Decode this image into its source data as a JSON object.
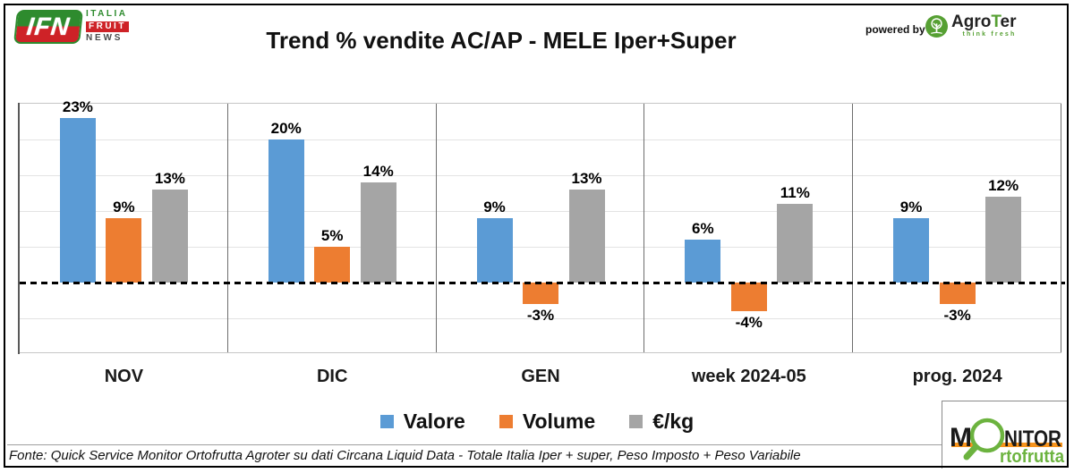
{
  "header": {
    "ifn_logo": {
      "abbr": "IFN",
      "word1": "ITALIA",
      "word2": "FRUIT",
      "word3": "NEWS"
    },
    "title": "Trend % vendite AC/AP - MELE Iper+Super",
    "powered_by": "powered by",
    "agroter": {
      "part1": "Agro",
      "part2": "T",
      "part3": "er",
      "tagline": "think fresh"
    }
  },
  "chart_data": {
    "type": "bar",
    "title": "Trend % vendite AC/AP - MELE Iper+Super",
    "categories": [
      "NOV",
      "DIC",
      "GEN",
      "week 2024-05",
      "prog. 2024"
    ],
    "series": [
      {
        "name": "Valore",
        "color": "#5B9BD5",
        "values": [
          23,
          20,
          9,
          6,
          9
        ]
      },
      {
        "name": "Volume",
        "color": "#ED7D31",
        "values": [
          9,
          5,
          -3,
          -4,
          -3
        ]
      },
      {
        "name": "€/kg",
        "color": "#A5A5A5",
        "values": [
          13,
          14,
          13,
          11,
          12
        ]
      }
    ],
    "value_suffix": "%",
    "ylim": [
      -10,
      25
    ],
    "gridline_step": 5,
    "grid": true,
    "zero_line_style": "dashed",
    "legend_position": "bottom"
  },
  "footer": {
    "text": "Fonte: Quick Service Monitor Ortofrutta Agroter su dati Circana Liquid Data - Totale Italia Iper + super, Peso Imposto + Peso Variabile"
  },
  "monitor_logo": {
    "m": "M",
    "nitor": "NITOR",
    "rest": "rtofrutta"
  },
  "colors": {
    "valore": "#5B9BD5",
    "volume": "#ED7D31",
    "eur_kg": "#A5A5A5",
    "ifn_green": "#2E8B2E",
    "ifn_red": "#CE2227",
    "agroter_green": "#56A033",
    "monitor_green": "#6CB33F",
    "monitor_orange": "#F7941D"
  }
}
